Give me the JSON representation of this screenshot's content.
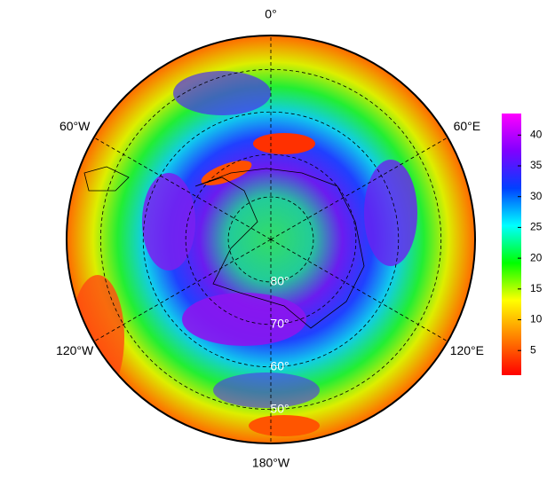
{
  "map": {
    "type": "polar-heatmap",
    "lat_lim": [
      90,
      42
    ],
    "lat_ticks": [
      {
        "value": 80,
        "label": "80°"
      },
      {
        "value": 70,
        "label": "70°"
      },
      {
        "value": 60,
        "label": "60°"
      },
      {
        "value": 50,
        "label": "50°"
      }
    ],
    "lon_ticks": [
      {
        "value": 0,
        "label": "0°"
      },
      {
        "value": 60,
        "label": "60°E"
      },
      {
        "value": 120,
        "label": "120°E"
      },
      {
        "value": -180,
        "label": "180°W"
      },
      {
        "value": -120,
        "label": "120°W"
      },
      {
        "value": -60,
        "label": "60°W"
      }
    ],
    "colorbar": {
      "lim": [
        1,
        43.5
      ],
      "ticks": [
        5,
        10,
        15,
        20,
        25,
        30,
        35,
        40
      ],
      "colors": [
        "#ff0000",
        "#ff8000",
        "#ffff00",
        "#00ff00",
        "#00ffff",
        "#0040ff",
        "#8000ff",
        "#ff00ff"
      ]
    }
  }
}
